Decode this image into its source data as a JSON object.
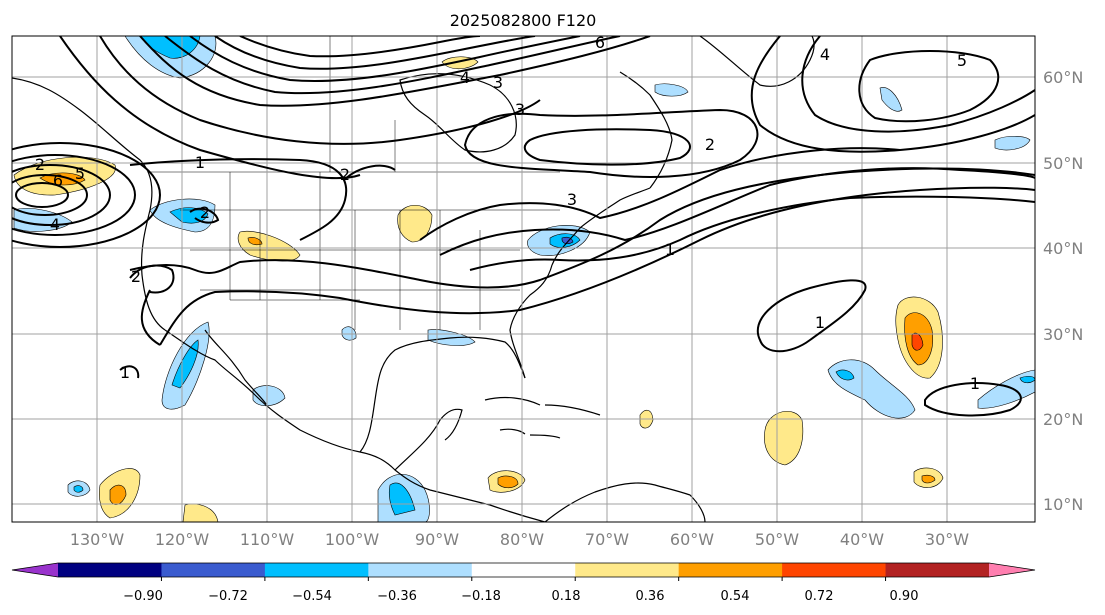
{
  "title": "2025082800 F120",
  "colors": {
    "colorbar": [
      "#9933cc",
      "#000080",
      "#3a5bcf",
      "#00bfff",
      "#aedfff",
      "#ffffff",
      "#ffe98a",
      "#ff9f00",
      "#ff4500",
      "#b22222",
      "#ff7fb0"
    ],
    "contour": "#000000",
    "grid": "#a0a0a0"
  },
  "colorbar_ticks": [
    "−0.90",
    "−0.72",
    "−0.54",
    "−0.36",
    "−0.18",
    "0.18",
    "0.36",
    "0.54",
    "0.72",
    "0.90"
  ],
  "lon_labels": [
    "130°W",
    "120°W",
    "110°W",
    "100°W",
    "90°W",
    "80°W",
    "70°W",
    "60°W",
    "50°W",
    "40°W",
    "30°W"
  ],
  "lat_labels": [
    "60°N",
    "50°N",
    "40°N",
    "30°N",
    "20°N",
    "10°N"
  ],
  "contour_labels": [
    "1",
    "2",
    "3",
    "4",
    "5",
    "6",
    "1",
    "1",
    "1",
    "1",
    "2",
    "2",
    "2",
    "2",
    "3",
    "3",
    "4",
    "5",
    "6",
    "4"
  ]
}
